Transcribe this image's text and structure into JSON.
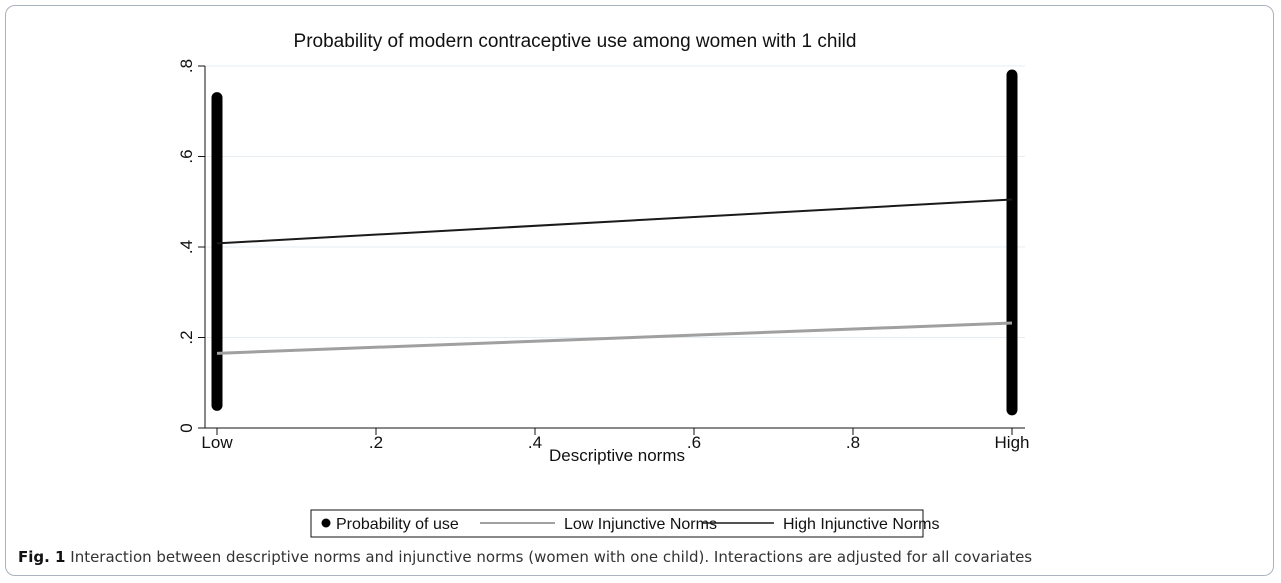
{
  "caption": {
    "label": "Fig. 1",
    "text": "Interaction between descriptive norms and injunctive norms (women with one child). Interactions are adjusted for all covariates"
  },
  "chart_data": {
    "type": "scatter",
    "title": "Probability of modern contraceptive use among women with 1 child",
    "xlabel": "Descriptive norms",
    "ylabel": "",
    "xlim": [
      0,
      1
    ],
    "ylim": [
      0,
      0.8
    ],
    "x_ticks": [
      {
        "value": 0,
        "label": "Low"
      },
      {
        "value": 0.2,
        "label": ".2"
      },
      {
        "value": 0.4,
        "label": ".4"
      },
      {
        "value": 0.6,
        "label": ".6"
      },
      {
        "value": 0.8,
        "label": ".8"
      },
      {
        "value": 1,
        "label": "High"
      }
    ],
    "y_ticks": [
      {
        "value": 0,
        "label": "0"
      },
      {
        "value": 0.2,
        "label": ".2"
      },
      {
        "value": 0.4,
        "label": ".4"
      },
      {
        "value": 0.6,
        "label": ".6"
      },
      {
        "value": 0.8,
        "label": ".8"
      }
    ],
    "grid": true,
    "legend_position": "bottom",
    "series": [
      {
        "name": "Probability of use",
        "kind": "scatter-band",
        "color": "#000000",
        "points": [
          {
            "x": 0,
            "y_min": 0.05,
            "y_max": 0.73
          },
          {
            "x": 1,
            "y_min": 0.04,
            "y_max": 0.78
          }
        ]
      },
      {
        "name": "Low Injunctive Norms",
        "kind": "line",
        "color": "#a0a0a0",
        "x": [
          0,
          1
        ],
        "y": [
          0.165,
          0.232
        ]
      },
      {
        "name": "High Injunctive Norms",
        "kind": "line",
        "color": "#1a1a1a",
        "x": [
          0,
          1
        ],
        "y": [
          0.408,
          0.505
        ]
      }
    ]
  }
}
